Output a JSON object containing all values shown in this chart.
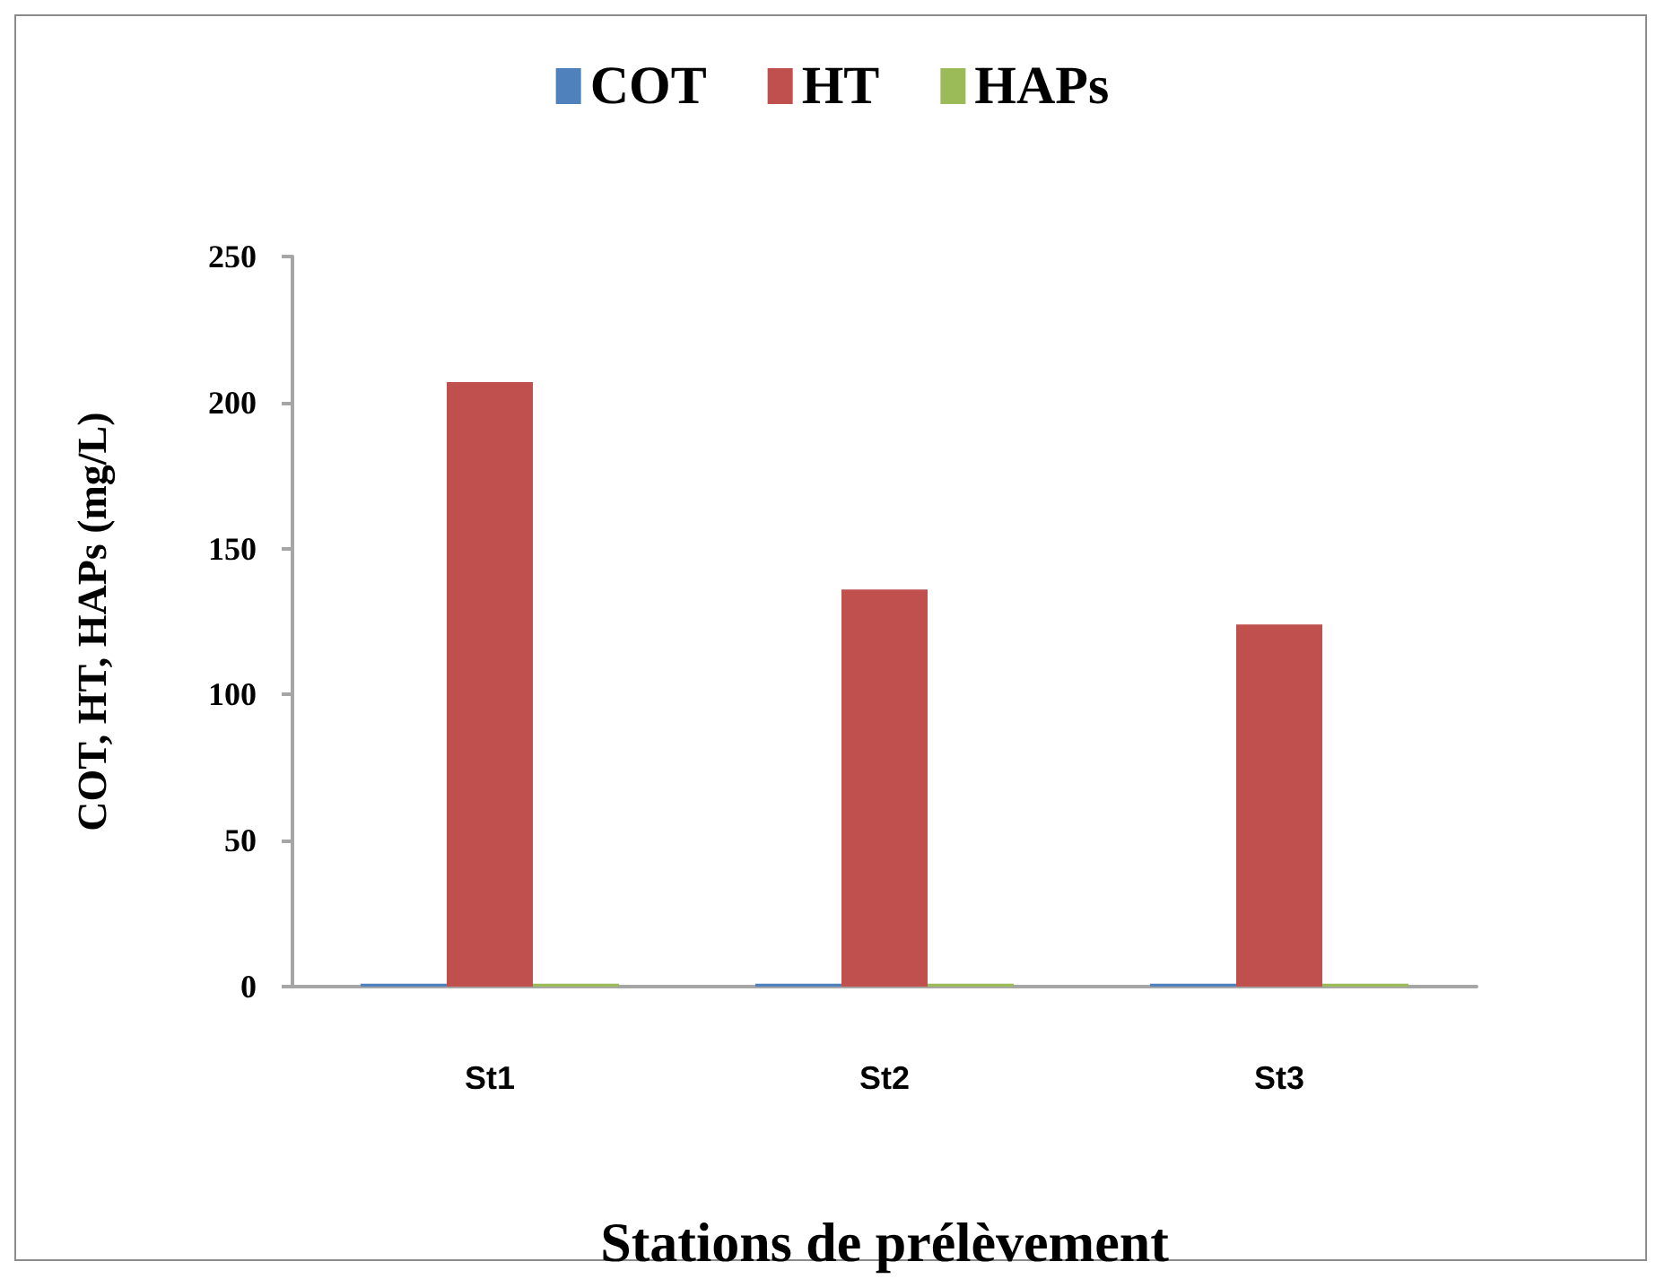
{
  "chart_data": {
    "type": "bar",
    "categories": [
      "St1",
      "St2",
      "St3"
    ],
    "series": [
      {
        "name": "COT",
        "color": "#4f81bd",
        "values": [
          1,
          1,
          1
        ]
      },
      {
        "name": "HT",
        "color": "#c0504d",
        "values": [
          207,
          136,
          124
        ]
      },
      {
        "name": "HAPs",
        "color": "#9bbb59",
        "values": [
          1,
          1,
          1
        ]
      }
    ],
    "xlabel": "Stations de prélèvement",
    "ylabel": "COT, HT, HAPs (mg/L)",
    "ylim": [
      0,
      250
    ],
    "yticks": [
      0,
      50,
      100,
      150,
      200,
      250
    ],
    "grid": false,
    "legend": "top"
  }
}
